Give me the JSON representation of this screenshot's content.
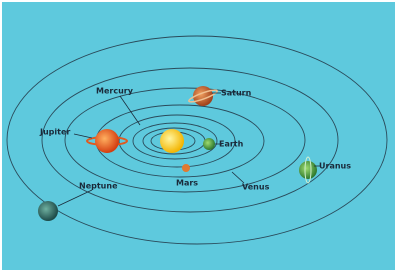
{
  "planets": [
    {
      "label": "Mercury"
    },
    {
      "label": "Saturn"
    },
    {
      "label": "Jupiter"
    },
    {
      "label": "Earth"
    },
    {
      "label": "Mars"
    },
    {
      "label": "Venus"
    },
    {
      "label": "Uranus"
    },
    {
      "label": "Neptune"
    }
  ]
}
